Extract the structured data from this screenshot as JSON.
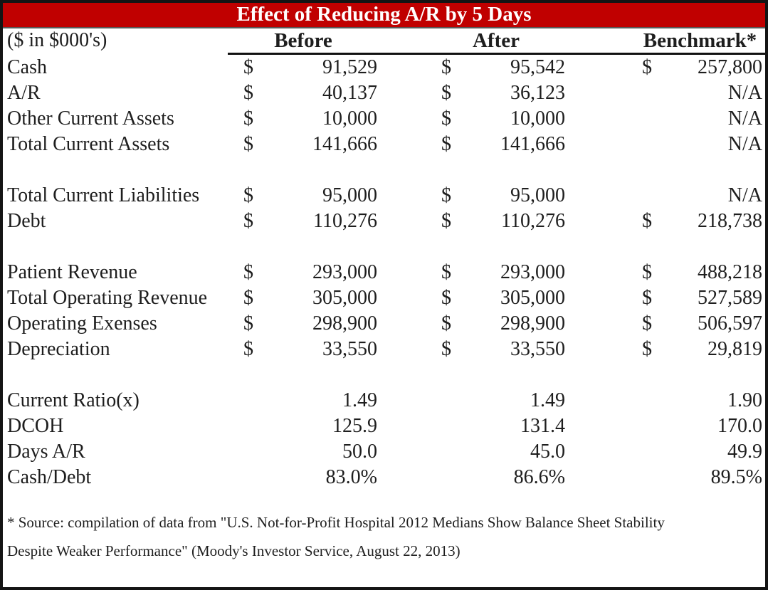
{
  "title": "Effect of Reducing A/R by 5 Days",
  "header": {
    "units": "($ in $000's)",
    "before": "Before",
    "after": "After",
    "benchmark": "Benchmark*"
  },
  "table": {
    "sections": [
      {
        "rows": [
          {
            "label": "Cash",
            "b_cur": "$",
            "b_val": "91,529",
            "a_cur": "$",
            "a_val": "95,542",
            "n_cur": "$",
            "n_val": "257,800"
          },
          {
            "label": "A/R",
            "b_cur": "$",
            "b_val": "40,137",
            "a_cur": "$",
            "a_val": "36,123",
            "n_cur": "",
            "n_val": "N/A"
          },
          {
            "label": "Other Current Assets",
            "b_cur": "$",
            "b_val": "10,000",
            "a_cur": "$",
            "a_val": "10,000",
            "n_cur": "",
            "n_val": "N/A"
          },
          {
            "label": "Total Current Assets",
            "b_cur": "$",
            "b_val": "141,666",
            "a_cur": "$",
            "a_val": "141,666",
            "n_cur": "",
            "n_val": "N/A"
          }
        ]
      },
      {
        "rows": [
          {
            "label": "Total Current Liabilities",
            "b_cur": "$",
            "b_val": "95,000",
            "a_cur": "$",
            "a_val": "95,000",
            "n_cur": "",
            "n_val": "N/A"
          },
          {
            "label": "Debt",
            "b_cur": "$",
            "b_val": "110,276",
            "a_cur": "$",
            "a_val": "110,276",
            "n_cur": "$",
            "n_val": "218,738"
          }
        ]
      },
      {
        "rows": [
          {
            "label": "Patient Revenue",
            "b_cur": "$",
            "b_val": "293,000",
            "a_cur": "$",
            "a_val": "293,000",
            "n_cur": "$",
            "n_val": "488,218"
          },
          {
            "label": "Total Operating Revenue",
            "b_cur": "$",
            "b_val": "305,000",
            "a_cur": "$",
            "a_val": "305,000",
            "n_cur": "$",
            "n_val": "527,589"
          },
          {
            "label": "Operating Exenses",
            "b_cur": "$",
            "b_val": "298,900",
            "a_cur": "$",
            "a_val": "298,900",
            "n_cur": "$",
            "n_val": "506,597"
          },
          {
            "label": "Depreciation",
            "b_cur": "$",
            "b_val": "33,550",
            "a_cur": "$",
            "a_val": "33,550",
            "n_cur": "$",
            "n_val": "29,819"
          }
        ]
      },
      {
        "rows": [
          {
            "label": "Current Ratio(x)",
            "b_cur": "",
            "b_val": "1.49",
            "a_cur": "",
            "a_val": "1.49",
            "n_cur": "",
            "n_val": "1.90"
          },
          {
            "label": "DCOH",
            "b_cur": "",
            "b_val": "125.9",
            "a_cur": "",
            "a_val": "131.4",
            "n_cur": "",
            "n_val": "170.0"
          },
          {
            "label": "Days A/R",
            "b_cur": "",
            "b_val": "50.0",
            "a_cur": "",
            "a_val": "45.0",
            "n_cur": "",
            "n_val": "49.9"
          },
          {
            "label": "Cash/Debt",
            "b_cur": "",
            "b_val": "83.0%",
            "a_cur": "",
            "a_val": "86.6%",
            "n_cur": "",
            "n_val": "89.5%"
          }
        ]
      }
    ]
  },
  "footnote": {
    "line1": "* Source: compilation of data from \"U.S. Not-for-Profit Hospital 2012 Medians Show Balance Sheet Stability",
    "line2": "Despite Weaker Performance\" (Moody's Investor Service, August 22, 2013)"
  },
  "colors": {
    "title_bg": "#C00000",
    "title_text": "#FFFFFF",
    "text": "#1E1E1E",
    "border": "#141414",
    "header_rule": "#111111"
  },
  "chart_data": {
    "type": "table",
    "title": "Effect of Reducing A/R by 5 Days",
    "units_note": "($ in $000's)",
    "columns": [
      "Before",
      "After",
      "Benchmark*"
    ],
    "rows": [
      {
        "label": "Cash",
        "before": 91529,
        "after": 95542,
        "benchmark": 257800
      },
      {
        "label": "A/R",
        "before": 40137,
        "after": 36123,
        "benchmark": "N/A"
      },
      {
        "label": "Other Current Assets",
        "before": 10000,
        "after": 10000,
        "benchmark": "N/A"
      },
      {
        "label": "Total Current Assets",
        "before": 141666,
        "after": 141666,
        "benchmark": "N/A"
      },
      {
        "label": "Total Current Liabilities",
        "before": 95000,
        "after": 95000,
        "benchmark": "N/A"
      },
      {
        "label": "Debt",
        "before": 110276,
        "after": 110276,
        "benchmark": 218738
      },
      {
        "label": "Patient Revenue",
        "before": 293000,
        "after": 293000,
        "benchmark": 488218
      },
      {
        "label": "Total Operating Revenue",
        "before": 305000,
        "after": 305000,
        "benchmark": 527589
      },
      {
        "label": "Operating Exenses",
        "before": 298900,
        "after": 298900,
        "benchmark": 506597
      },
      {
        "label": "Depreciation",
        "before": 33550,
        "after": 33550,
        "benchmark": 29819
      },
      {
        "label": "Current Ratio(x)",
        "before": 1.49,
        "after": 1.49,
        "benchmark": 1.9
      },
      {
        "label": "DCOH",
        "before": 125.9,
        "after": 131.4,
        "benchmark": 170.0
      },
      {
        "label": "Days A/R",
        "before": 50.0,
        "after": 45.0,
        "benchmark": 49.9
      },
      {
        "label": "Cash/Debt",
        "before": "83.0%",
        "after": "86.6%",
        "benchmark": "89.5%"
      }
    ],
    "footnote": "* Source: compilation of data from \"U.S. Not-for-Profit Hospital 2012 Medians Show Balance Sheet Stability Despite Weaker Performance\" (Moody's Investor Service, August 22, 2013)"
  }
}
